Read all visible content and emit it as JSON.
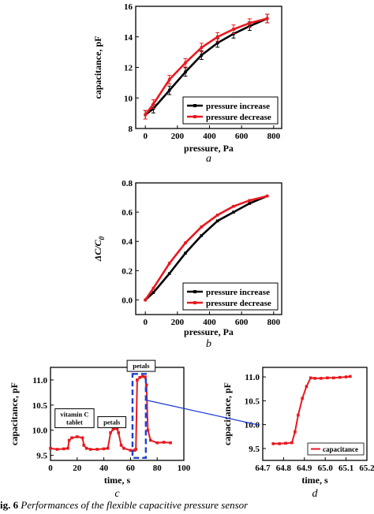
{
  "chart_data": [
    {
      "panel_label": "a",
      "type": "line",
      "xlabel": "pressure, Pa",
      "ylabel": "capacitance, pF",
      "xlim": [
        -60,
        850
      ],
      "ylim": [
        8,
        16
      ],
      "xticks": [
        0,
        200,
        400,
        600,
        800
      ],
      "yticks": [
        8,
        10,
        12,
        14,
        16
      ],
      "legend_position": "bottom-right",
      "series": [
        {
          "name": "pressure increase",
          "color": "#000000",
          "x": [
            0,
            50,
            150,
            250,
            350,
            450,
            550,
            650,
            760
          ],
          "y": [
            8.9,
            9.3,
            10.5,
            11.7,
            12.8,
            13.6,
            14.2,
            14.7,
            15.2
          ],
          "error_bars": true
        },
        {
          "name": "pressure decrease",
          "color": "#e8191f",
          "x": [
            0,
            50,
            150,
            250,
            350,
            450,
            550,
            650,
            760
          ],
          "y": [
            8.9,
            9.6,
            11.2,
            12.3,
            13.3,
            14.0,
            14.5,
            14.9,
            15.2
          ],
          "error_bars": true
        }
      ]
    },
    {
      "panel_label": "b",
      "type": "line",
      "xlabel": "pressure, Pa",
      "ylabel_main": "ΔC/C",
      "ylabel_sub": "0",
      "xlim": [
        -60,
        850
      ],
      "ylim": [
        -0.1,
        0.8
      ],
      "xticks": [
        0,
        200,
        400,
        600,
        800
      ],
      "yticks": [
        0.0,
        0.2,
        0.4,
        0.6,
        0.8
      ],
      "legend_position": "bottom-right",
      "series": [
        {
          "name": "pressure increase",
          "color": "#000000",
          "x": [
            0,
            50,
            150,
            250,
            350,
            450,
            550,
            650,
            760
          ],
          "y": [
            0.0,
            0.05,
            0.18,
            0.32,
            0.44,
            0.54,
            0.6,
            0.66,
            0.71
          ]
        },
        {
          "name": "pressure decrease",
          "color": "#e8191f",
          "x": [
            0,
            50,
            150,
            250,
            350,
            450,
            550,
            650,
            760
          ],
          "y": [
            0.0,
            0.08,
            0.25,
            0.39,
            0.5,
            0.58,
            0.64,
            0.68,
            0.71
          ]
        }
      ]
    },
    {
      "panel_label": "c",
      "type": "line",
      "xlabel": "time, s",
      "ylabel": "capacitance, pF",
      "xlim": [
        0,
        100
      ],
      "ylim": [
        9.4,
        11.25
      ],
      "xticks": [
        0,
        20,
        40,
        60,
        80,
        100
      ],
      "yticks": [
        9.5,
        10.0,
        10.5,
        11.0
      ],
      "annotations": [
        {
          "text_lines": [
            "vitamin C",
            "tablet"
          ],
          "x": 18,
          "y": 10.05
        },
        {
          "text_lines": [
            "petals"
          ],
          "x": 46,
          "y": 10.05
        },
        {
          "text_lines": [
            "petals"
          ],
          "x": 68,
          "y": 11.17
        }
      ],
      "series": [
        {
          "name": "capacitance",
          "color": "#e8191f",
          "x": [
            0,
            5,
            10,
            13,
            14,
            16,
            20,
            24,
            25,
            27,
            30,
            35,
            40,
            43,
            45,
            47,
            50,
            51,
            53,
            55,
            60,
            63,
            64,
            65,
            67,
            69,
            71,
            72,
            73,
            75,
            80,
            85,
            90
          ],
          "y": [
            9.64,
            9.62,
            9.63,
            9.64,
            9.8,
            9.85,
            9.87,
            9.85,
            9.7,
            9.64,
            9.62,
            9.62,
            9.63,
            9.64,
            9.95,
            10.02,
            10.03,
            9.95,
            9.7,
            9.64,
            9.6,
            9.6,
            9.62,
            11.0,
            11.05,
            11.07,
            11.06,
            10.9,
            10.0,
            9.8,
            9.75,
            9.76,
            9.75
          ]
        }
      ]
    },
    {
      "panel_label": "d",
      "type": "line",
      "xlabel": "time, s",
      "ylabel": "capacitance, pF",
      "xlim": [
        64.7,
        65.2
      ],
      "ylim": [
        9.25,
        11.2
      ],
      "xticks": [
        64.7,
        64.8,
        64.9,
        65.0,
        65.1,
        65.2
      ],
      "xtick_labels": [
        "64.7",
        "64.8",
        "64.9",
        "65.0",
        "65.1",
        "65.2"
      ],
      "yticks": [
        9.5,
        10.0,
        10.5,
        11.0
      ],
      "legend_position": "bottom-right",
      "series": [
        {
          "name": "capacitance",
          "color": "#e8191f",
          "x": [
            64.75,
            64.78,
            64.81,
            64.84,
            64.855,
            64.87,
            64.89,
            64.91,
            64.93,
            64.95,
            64.98,
            65.01,
            65.04,
            65.07,
            65.1,
            65.12
          ],
          "y": [
            9.6,
            9.6,
            9.61,
            9.62,
            9.85,
            10.2,
            10.55,
            10.8,
            10.98,
            10.97,
            10.97,
            10.98,
            10.98,
            10.99,
            11.0,
            11.01
          ]
        }
      ]
    }
  ],
  "caption": {
    "label": "ig. 6",
    "text": "Performances of the flexible capacitive pressure sensor"
  }
}
